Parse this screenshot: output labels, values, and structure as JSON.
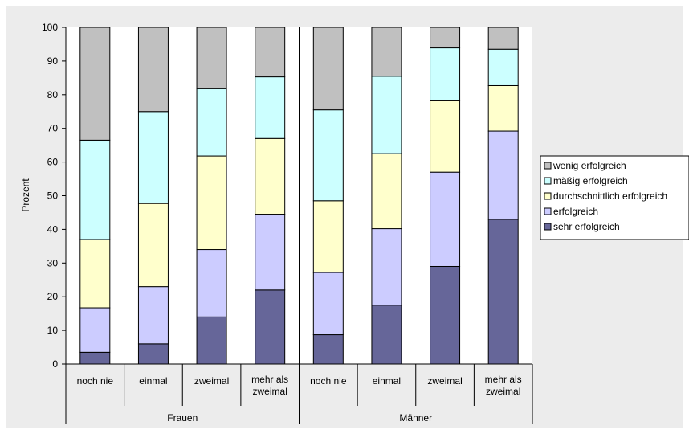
{
  "chart_data": {
    "type": "bar",
    "stacked": true,
    "ylabel": "Prozent",
    "ylim": [
      0,
      100
    ],
    "yticks": [
      0,
      10,
      20,
      30,
      40,
      50,
      60,
      70,
      80,
      90,
      100
    ],
    "groups": [
      {
        "label": "Frauen",
        "categories": [
          "noch nie",
          "einmal",
          "zweimal",
          "mehr als zweimal"
        ]
      },
      {
        "label": "Männer",
        "categories": [
          "noch nie",
          "einmal",
          "zweimal",
          "mehr als zweimal"
        ]
      }
    ],
    "series": [
      {
        "name": "sehr erfolgreich",
        "color": "#666699",
        "values": [
          3.5,
          6,
          14,
          22,
          8.7,
          17.5,
          29,
          43
        ]
      },
      {
        "name": "erfolgreich",
        "color": "#ccccff",
        "values": [
          13.2,
          17,
          20,
          22.5,
          18.5,
          22.7,
          28,
          26.2
        ]
      },
      {
        "name": "durchschnittlich erfolgreich",
        "color": "#ffffcc",
        "values": [
          20.3,
          24.7,
          27.8,
          22.5,
          21.3,
          22.3,
          21.2,
          13.5
        ]
      },
      {
        "name": "mäßig erfolgreich",
        "color": "#ccffff",
        "values": [
          29.5,
          27.3,
          20,
          18.3,
          27,
          23,
          15.7,
          10.8
        ]
      },
      {
        "name": "wenig erfolgreich",
        "color": "#c0c0c0",
        "values": [
          33.5,
          25,
          18.2,
          14.7,
          24.5,
          14.5,
          6.1,
          6.5
        ]
      }
    ],
    "legend_position": "right",
    "grid": false
  }
}
